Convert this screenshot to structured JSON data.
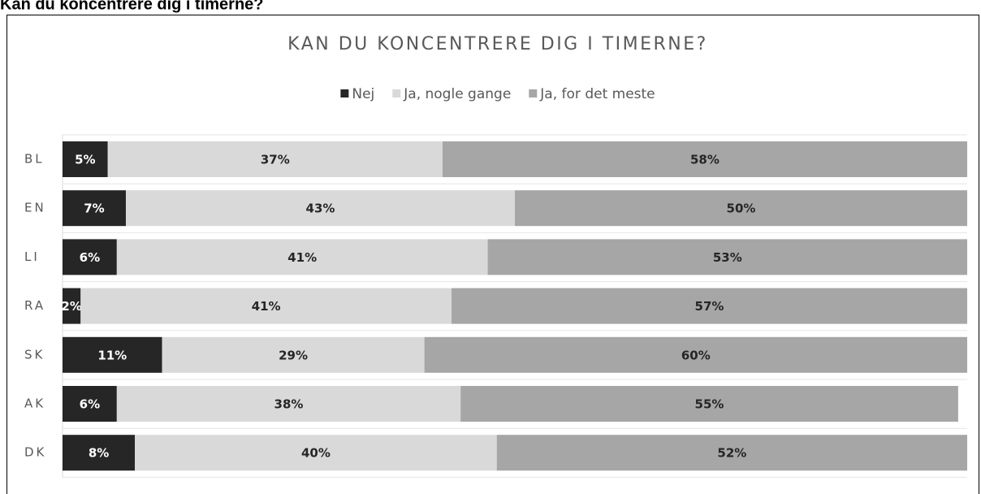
{
  "heading": "Kan du koncentrere dig i timerne?",
  "chart_data": {
    "type": "stacked-bar-horizontal",
    "title": "KAN DU KONCENTRERE DIG I TIMERNE?",
    "categories": [
      "BL",
      "EN",
      "LI",
      "RA",
      "SK",
      "AK",
      "DK"
    ],
    "xlim": [
      0,
      100
    ],
    "legend": "top",
    "series": [
      {
        "name": "Nej",
        "color": "#262626",
        "values": [
          5,
          7,
          6,
          2,
          11,
          6,
          8
        ],
        "value_labels": [
          "5%",
          "7%",
          "6%",
          "2%",
          "11%",
          "6%",
          "8%"
        ]
      },
      {
        "name": "Ja, nogle gange",
        "color": "#d9d9d9",
        "values": [
          37,
          43,
          41,
          41,
          29,
          38,
          40
        ],
        "value_labels": [
          "37%",
          "43%",
          "41%",
          "41%",
          "29%",
          "38%",
          "40%"
        ]
      },
      {
        "name": "Ja, for det meste",
        "color": "#a6a6a6",
        "values": [
          58,
          50,
          53,
          57,
          60,
          55,
          52
        ],
        "value_labels": [
          "58%",
          "50%",
          "53%",
          "57%",
          "60%",
          "55%",
          "52%"
        ]
      }
    ]
  }
}
